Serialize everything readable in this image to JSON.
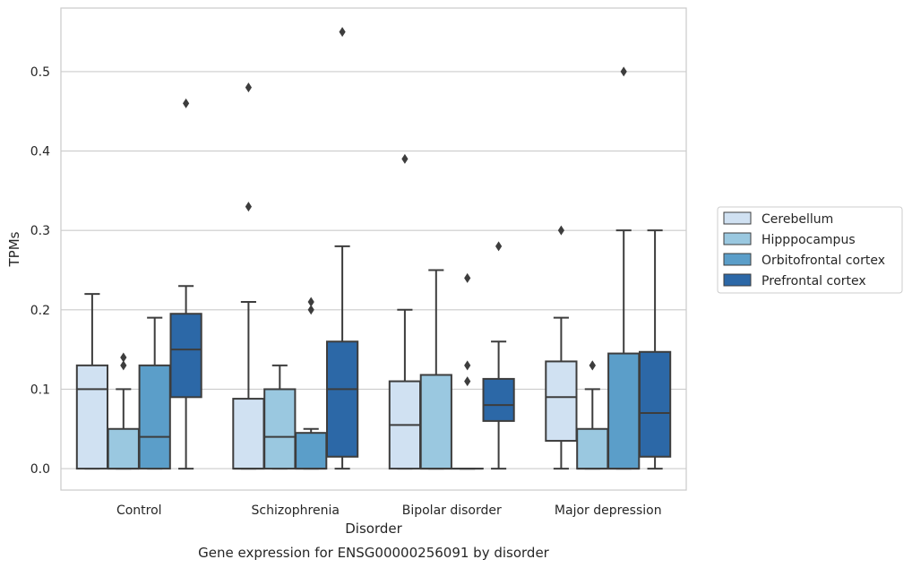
{
  "chart_data": {
    "type": "box",
    "title": "",
    "caption": "Gene expression for ENSG00000256091 by disorder",
    "xlabel": "Disorder",
    "ylabel": "TPMs",
    "ylim": [
      -0.027,
      0.58
    ],
    "yticks": [
      0.0,
      0.1,
      0.2,
      0.3,
      0.4,
      0.5
    ],
    "ytick_labels": [
      "0.0",
      "0.1",
      "0.2",
      "0.3",
      "0.4",
      "0.5"
    ],
    "grid": "horizontal",
    "legend_position": "right",
    "categories": [
      "Control",
      "Schizophrenia",
      "Bipolar disorder",
      "Major depression"
    ],
    "series": [
      {
        "name": "Cerebellum",
        "color": "#d0e1f2",
        "boxes": [
          {
            "whislo": 0.0,
            "q1": 0.0,
            "med": 0.1,
            "q3": 0.13,
            "whishi": 0.22,
            "fliers": []
          },
          {
            "whislo": 0.0,
            "q1": 0.0,
            "med": 0.0,
            "q3": 0.088,
            "whishi": 0.21,
            "fliers": [
              0.33,
              0.48
            ]
          },
          {
            "whislo": 0.0,
            "q1": 0.0,
            "med": 0.055,
            "q3": 0.11,
            "whishi": 0.2,
            "fliers": [
              0.39
            ]
          },
          {
            "whislo": 0.0,
            "q1": 0.035,
            "med": 0.09,
            "q3": 0.135,
            "whishi": 0.19,
            "fliers": [
              0.3
            ]
          }
        ]
      },
      {
        "name": "Hipppocampus",
        "color": "#9ac8e0",
        "boxes": [
          {
            "whislo": 0.0,
            "q1": 0.0,
            "med": 0.0,
            "q3": 0.05,
            "whishi": 0.1,
            "fliers": [
              0.13,
              0.14
            ]
          },
          {
            "whislo": 0.0,
            "q1": 0.0,
            "med": 0.04,
            "q3": 0.1,
            "whishi": 0.13,
            "fliers": []
          },
          {
            "whislo": 0.0,
            "q1": 0.0,
            "med": 0.0,
            "q3": 0.118,
            "whishi": 0.25,
            "fliers": []
          },
          {
            "whislo": 0.0,
            "q1": 0.0,
            "med": 0.0,
            "q3": 0.05,
            "whishi": 0.1,
            "fliers": [
              0.13,
              0.13
            ]
          }
        ]
      },
      {
        "name": "Orbitofrontal cortex",
        "color": "#5b9ec9",
        "boxes": [
          {
            "whislo": 0.0,
            "q1": 0.0,
            "med": 0.04,
            "q3": 0.13,
            "whishi": 0.19,
            "fliers": []
          },
          {
            "whislo": 0.0,
            "q1": 0.0,
            "med": 0.0,
            "q3": 0.045,
            "whishi": 0.05,
            "fliers": [
              0.2,
              0.21
            ]
          },
          {
            "whislo": 0.0,
            "q1": 0.0,
            "med": 0.0,
            "q3": 0.0,
            "whishi": 0.0,
            "fliers": [
              0.11,
              0.13,
              0.24
            ]
          },
          {
            "whislo": 0.0,
            "q1": 0.0,
            "med": 0.0,
            "q3": 0.145,
            "whishi": 0.3,
            "fliers": [
              0.5
            ]
          }
        ]
      },
      {
        "name": "Prefrontal cortex",
        "color": "#2c68a7",
        "boxes": [
          {
            "whislo": 0.0,
            "q1": 0.09,
            "med": 0.15,
            "q3": 0.195,
            "whishi": 0.23,
            "fliers": [
              0.46
            ]
          },
          {
            "whislo": 0.0,
            "q1": 0.015,
            "med": 0.1,
            "q3": 0.16,
            "whishi": 0.28,
            "fliers": [
              0.55
            ]
          },
          {
            "whislo": 0.0,
            "q1": 0.06,
            "med": 0.08,
            "q3": 0.113,
            "whishi": 0.16,
            "fliers": [
              0.28
            ]
          },
          {
            "whislo": 0.0,
            "q1": 0.015,
            "med": 0.07,
            "q3": 0.147,
            "whishi": 0.3,
            "fliers": []
          }
        ]
      }
    ]
  }
}
